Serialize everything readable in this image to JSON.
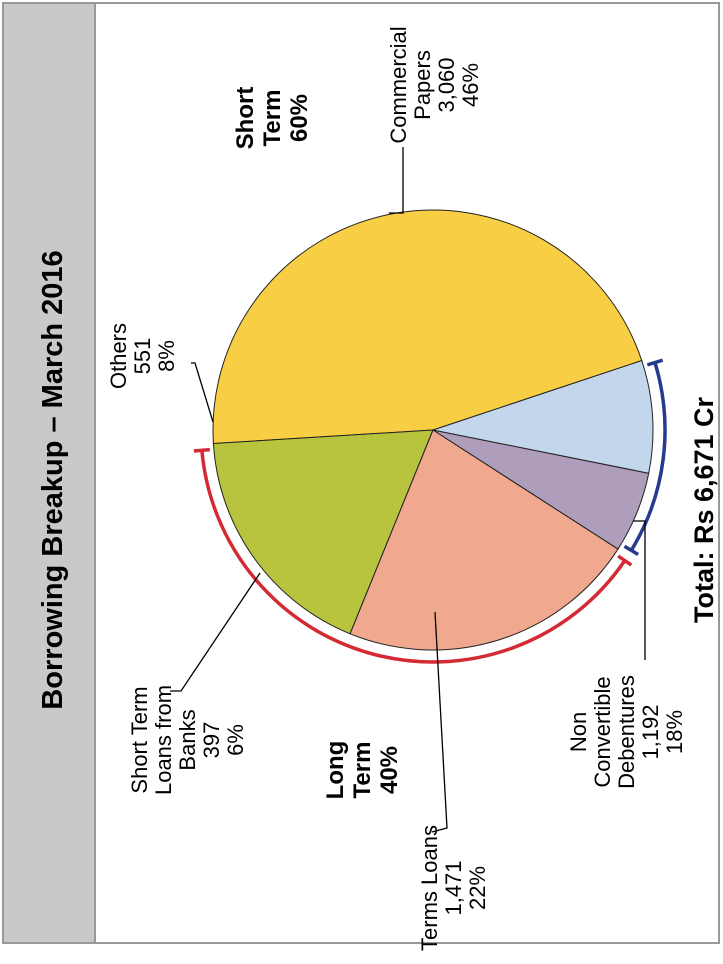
{
  "chart_data": {
    "type": "pie",
    "title": "Borrowing Breakup – March 2016",
    "total_label": "Total: Rs 6,671 Cr",
    "slices": [
      {
        "label_lines": [
          "Commercial",
          "Papers",
          "3,060",
          "46%"
        ],
        "value": 3060,
        "percent": 46,
        "color": "#F8CF44"
      },
      {
        "label_lines": [
          "Non",
          "Convertible",
          "Debentures",
          "1,192",
          "18%"
        ],
        "value": 1192,
        "percent": 18,
        "color": "#B8C43E"
      },
      {
        "label_lines": [
          "Terms Loans",
          "1,471",
          "22%"
        ],
        "value": 1471,
        "percent": 22,
        "color": "#F0A88E"
      },
      {
        "label_lines": [
          "Short Term",
          "Loans from",
          "Banks",
          "397",
          "6%"
        ],
        "value": 397,
        "percent": 6,
        "color": "#AE9DBB"
      },
      {
        "label_lines": [
          "Others",
          "551",
          "8%"
        ],
        "value": 551,
        "percent": 8,
        "color": "#C3D7EC"
      }
    ],
    "groups": [
      {
        "label_lines": [
          "Short",
          "Term",
          "60%"
        ],
        "percent": 60,
        "color": "#263A8E"
      },
      {
        "label_lines": [
          "Long",
          "Term",
          "40%"
        ],
        "percent": 40,
        "color": "#D42A33"
      }
    ],
    "colors": {
      "title_bar": "#C9C9C9",
      "total_text": "#1F7CC4"
    }
  }
}
